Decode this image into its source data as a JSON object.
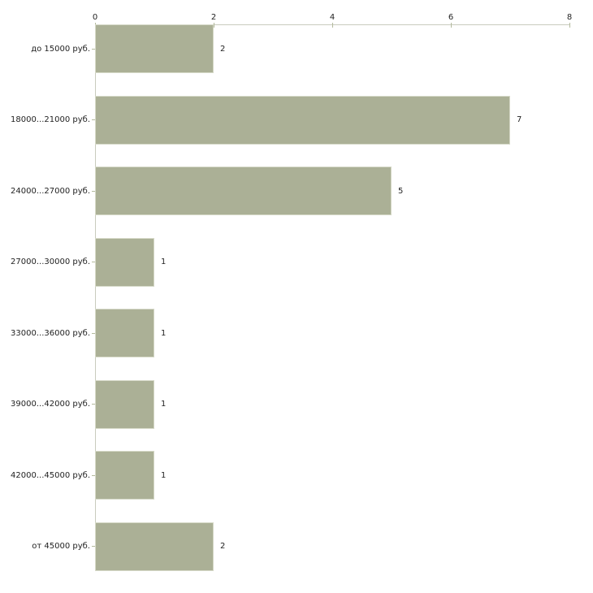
{
  "chart_data": {
    "type": "bar",
    "orientation": "horizontal",
    "title": "",
    "xlabel": "",
    "ylabel": "",
    "categories": [
      "до 15000 руб.",
      "18000...21000 руб.",
      "24000...27000 руб.",
      "27000...30000 руб.",
      "33000...36000 руб.",
      "39000...42000 руб.",
      "42000...45000 руб.",
      "от 45000 руб."
    ],
    "values": [
      2,
      7,
      5,
      1,
      1,
      1,
      1,
      2
    ],
    "value_labels": [
      "2",
      "7",
      "5",
      "1",
      "1",
      "1",
      "1",
      "2"
    ],
    "xlim": [
      0,
      8
    ],
    "xticks": [
      "0",
      "2",
      "4",
      "6",
      "8"
    ],
    "grid": false,
    "legend": null,
    "colors": {
      "bar_fill": "#abb096",
      "bar_border": "#d6d9c8",
      "axis_line": "#c9ccbe",
      "tick_mark": "#b3ba9d",
      "text": "#1f1f1f",
      "background": "#ffffff"
    }
  }
}
